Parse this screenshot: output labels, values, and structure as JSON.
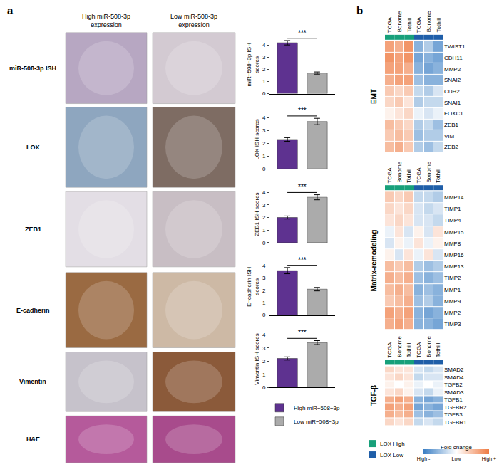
{
  "chart_data": [
    {
      "type": "bar",
      "y_label": "miR−508−3p ISH\nscores",
      "tick_labels": "y",
      "legend": "below",
      "annotation": "***",
      "ylim": [
        0,
        4.8
      ],
      "yticks": [
        0,
        1,
        2,
        3,
        4
      ],
      "series": [
        {
          "name": "High miR−508−3p",
          "color": "#5e3290",
          "values": [
            4.2
          ],
          "error": [
            0.18
          ]
        },
        {
          "name": "Low miR−508−3p",
          "color": "#ababab",
          "values": [
            1.7
          ],
          "error": [
            0.09
          ]
        }
      ]
    },
    {
      "type": "bar",
      "y_label": "LOX ISH scores",
      "tick_labels": "y",
      "annotation": "***",
      "ylim": [
        0,
        4.6
      ],
      "yticks": [
        0,
        1,
        2,
        3,
        4
      ],
      "series": [
        {
          "name": "High miR−508−3p",
          "color": "#5e3290",
          "values": [
            2.3
          ],
          "error": [
            0.14
          ]
        },
        {
          "name": "Low miR−508−3p",
          "color": "#ababab",
          "values": [
            3.7
          ],
          "error": [
            0.25
          ]
        }
      ]
    },
    {
      "type": "bar",
      "y_label": "ZEB1 ISH scores",
      "tick_labels": "y",
      "annotation": "***",
      "ylim": [
        0,
        4.5
      ],
      "yticks": [
        0,
        1,
        2,
        3,
        4
      ],
      "series": [
        {
          "name": "High miR−508−3p",
          "color": "#5e3290",
          "values": [
            2.0
          ],
          "error": [
            0.12
          ]
        },
        {
          "name": "Low miR−508−3p",
          "color": "#ababab",
          "values": [
            3.6
          ],
          "error": [
            0.2
          ]
        }
      ]
    },
    {
      "type": "bar",
      "y_label": "E−cadherin ISH\nscores",
      "tick_labels": "y",
      "annotation": "***",
      "ylim": [
        0,
        4.6
      ],
      "yticks": [
        0,
        1,
        2,
        3,
        4
      ],
      "series": [
        {
          "name": "High miR−508−3p",
          "color": "#5e3290",
          "values": [
            3.6
          ],
          "error": [
            0.25
          ]
        },
        {
          "name": "Low miR−508−3p",
          "color": "#ababab",
          "values": [
            2.1
          ],
          "error": [
            0.14
          ]
        }
      ]
    },
    {
      "type": "bar",
      "y_label": "Vimentin ISH scores",
      "tick_labels": "y",
      "annotation": "***",
      "ylim": [
        0,
        4.3
      ],
      "yticks": [
        0,
        1,
        2,
        3,
        4
      ],
      "series": [
        {
          "name": "High miR−508−3p",
          "color": "#5e3290",
          "values": [
            2.2
          ],
          "error": [
            0.12
          ]
        },
        {
          "name": "Low miR−508−3p",
          "color": "#ababab",
          "values": [
            3.4
          ],
          "error": [
            0.15
          ]
        }
      ]
    },
    {
      "type": "heatmap",
      "title": "EMT",
      "tick_labels": "y",
      "columns": [
        "TCGA",
        "Bonome",
        "Tothill",
        "TCGA",
        "Bonome",
        "Tothill"
      ],
      "column_groups": [
        "LOX High",
        "LOX High",
        "LOX High",
        "LOX Low",
        "LOX Low",
        "LOX Low"
      ],
      "rows": [
        "TWIST1",
        "CDH11",
        "MMP2",
        "SNAI2",
        "CDH2",
        "SNAI1",
        "FOXC1",
        "ZEB1",
        "VIM",
        "ZEB2"
      ],
      "cells": [
        [
          0.7,
          0.6,
          0.8,
          -0.6,
          -0.4,
          -0.7
        ],
        [
          0.8,
          0.7,
          0.8,
          -0.7,
          -0.6,
          -0.7
        ],
        [
          0.7,
          0.7,
          0.6,
          -0.6,
          -0.7,
          -0.6
        ],
        [
          0.6,
          0.7,
          0.7,
          -0.5,
          -0.6,
          -0.6
        ],
        [
          0.4,
          0.3,
          0.4,
          -0.3,
          -0.4,
          -0.2
        ],
        [
          0.3,
          0.4,
          0.2,
          -0.4,
          -0.3,
          -0.3
        ],
        [
          0.1,
          0.2,
          0.3,
          -0.1,
          -0.2,
          -0.1
        ],
        [
          0.5,
          0.4,
          0.3,
          -0.4,
          -0.3,
          -0.5
        ],
        [
          0.4,
          0.5,
          0.4,
          -0.5,
          -0.4,
          -0.4
        ],
        [
          0.5,
          0.6,
          0.4,
          -0.4,
          -0.5,
          -0.3
        ]
      ]
    },
    {
      "type": "heatmap",
      "title": "Matrix-remodeling",
      "tick_labels": "y",
      "columns": [
        "TCGA",
        "Bonome",
        "Tothill",
        "TCGA",
        "Bonome",
        "Tothill"
      ],
      "column_groups": [
        "LOX High",
        "LOX High",
        "LOX High",
        "LOX Low",
        "LOX Low",
        "LOX Low"
      ],
      "rows": [
        "MMP14",
        "TIMP1",
        "TIMP4",
        "MMP15",
        "MMP8",
        "MMP16",
        "MMP13",
        "TIMP2",
        "MMP1",
        "MMP9",
        "MMP2",
        "TIMP3"
      ],
      "cells": [
        [
          0.4,
          0.3,
          0.4,
          -0.3,
          -0.3,
          -0.4
        ],
        [
          0.3,
          0.2,
          0.3,
          -0.2,
          -0.3,
          -0.2
        ],
        [
          0.2,
          0.3,
          0.2,
          -0.2,
          -0.2,
          -0.3
        ],
        [
          -0.1,
          0.2,
          -0.2,
          0.1,
          -0.2,
          0.2
        ],
        [
          -0.2,
          0.1,
          -0.1,
          0.2,
          -0.1,
          0.1
        ],
        [
          0.1,
          -0.2,
          0.2,
          -0.1,
          0.2,
          -0.2
        ],
        [
          0.5,
          0.4,
          0.5,
          -0.4,
          -0.5,
          -0.4
        ],
        [
          0.6,
          0.5,
          0.6,
          -0.5,
          -0.6,
          -0.5
        ],
        [
          0.5,
          0.6,
          0.5,
          -0.6,
          -0.5,
          -0.6
        ],
        [
          0.4,
          0.5,
          0.6,
          -0.5,
          -0.4,
          -0.6
        ],
        [
          0.7,
          0.6,
          0.7,
          -0.6,
          -0.7,
          -0.6
        ],
        [
          0.6,
          0.7,
          0.6,
          -0.6,
          -0.6,
          -0.7
        ]
      ]
    },
    {
      "type": "heatmap",
      "title": "TGF-β",
      "tick_labels": "y",
      "columns": [
        "TCGA",
        "Bonome",
        "Tothill",
        "TCGA",
        "Bonome",
        "Tothill"
      ],
      "column_groups": [
        "LOX High",
        "LOX High",
        "LOX High",
        "LOX Low",
        "LOX Low",
        "LOX Low"
      ],
      "rows": [
        "SMAD2",
        "SMAD4",
        "TGFB2",
        "SMAD3",
        "TGFB1",
        "TGFBR2",
        "TGFB3",
        "TGFBR1"
      ],
      "cells": [
        [
          0.3,
          0.2,
          0.2,
          -0.2,
          -0.3,
          -0.2
        ],
        [
          0.2,
          0.3,
          0.2,
          -0.3,
          -0.2,
          -0.2
        ],
        [
          0.1,
          0.0,
          0.1,
          -0.1,
          0.0,
          -0.1
        ],
        [
          0.2,
          0.3,
          0.1,
          -0.2,
          -0.3,
          -0.1
        ],
        [
          0.6,
          0.7,
          0.6,
          -0.6,
          -0.7,
          -0.6
        ],
        [
          0.7,
          0.6,
          0.7,
          -0.7,
          -0.6,
          -0.7
        ],
        [
          0.6,
          0.5,
          0.6,
          -0.5,
          -0.6,
          -0.5
        ],
        [
          0.3,
          0.2,
          0.3,
          -0.3,
          -0.2,
          -0.3
        ]
      ]
    }
  ],
  "figure": {
    "panels": [
      "a",
      "b"
    ],
    "image_panel": {
      "columns": [
        "High miR-508-3p\nexpression",
        "Low miR-508-3p\nexpression"
      ],
      "rows": [
        "miR-508-3p ISH",
        "LOX",
        "ZEB1",
        "E-cadherin",
        "Vimentin",
        "H&E"
      ]
    },
    "heatmap_legend": {
      "groups": [
        {
          "name": "LOX High",
          "color": "#17a07a"
        },
        {
          "name": "LOX Low",
          "color": "#1f5ea8"
        }
      ],
      "colorbar": {
        "title": "Fold change",
        "range": [
          -1,
          1
        ],
        "colorscale": [
          "#3b7fc4",
          "#ffffff",
          "#ef7a41"
        ],
        "ticks": [
          {
            "value": -1,
            "label": "High -"
          },
          {
            "value": 0,
            "label": "Low"
          },
          {
            "value": 1,
            "label": "High +"
          }
        ]
      }
    }
  }
}
